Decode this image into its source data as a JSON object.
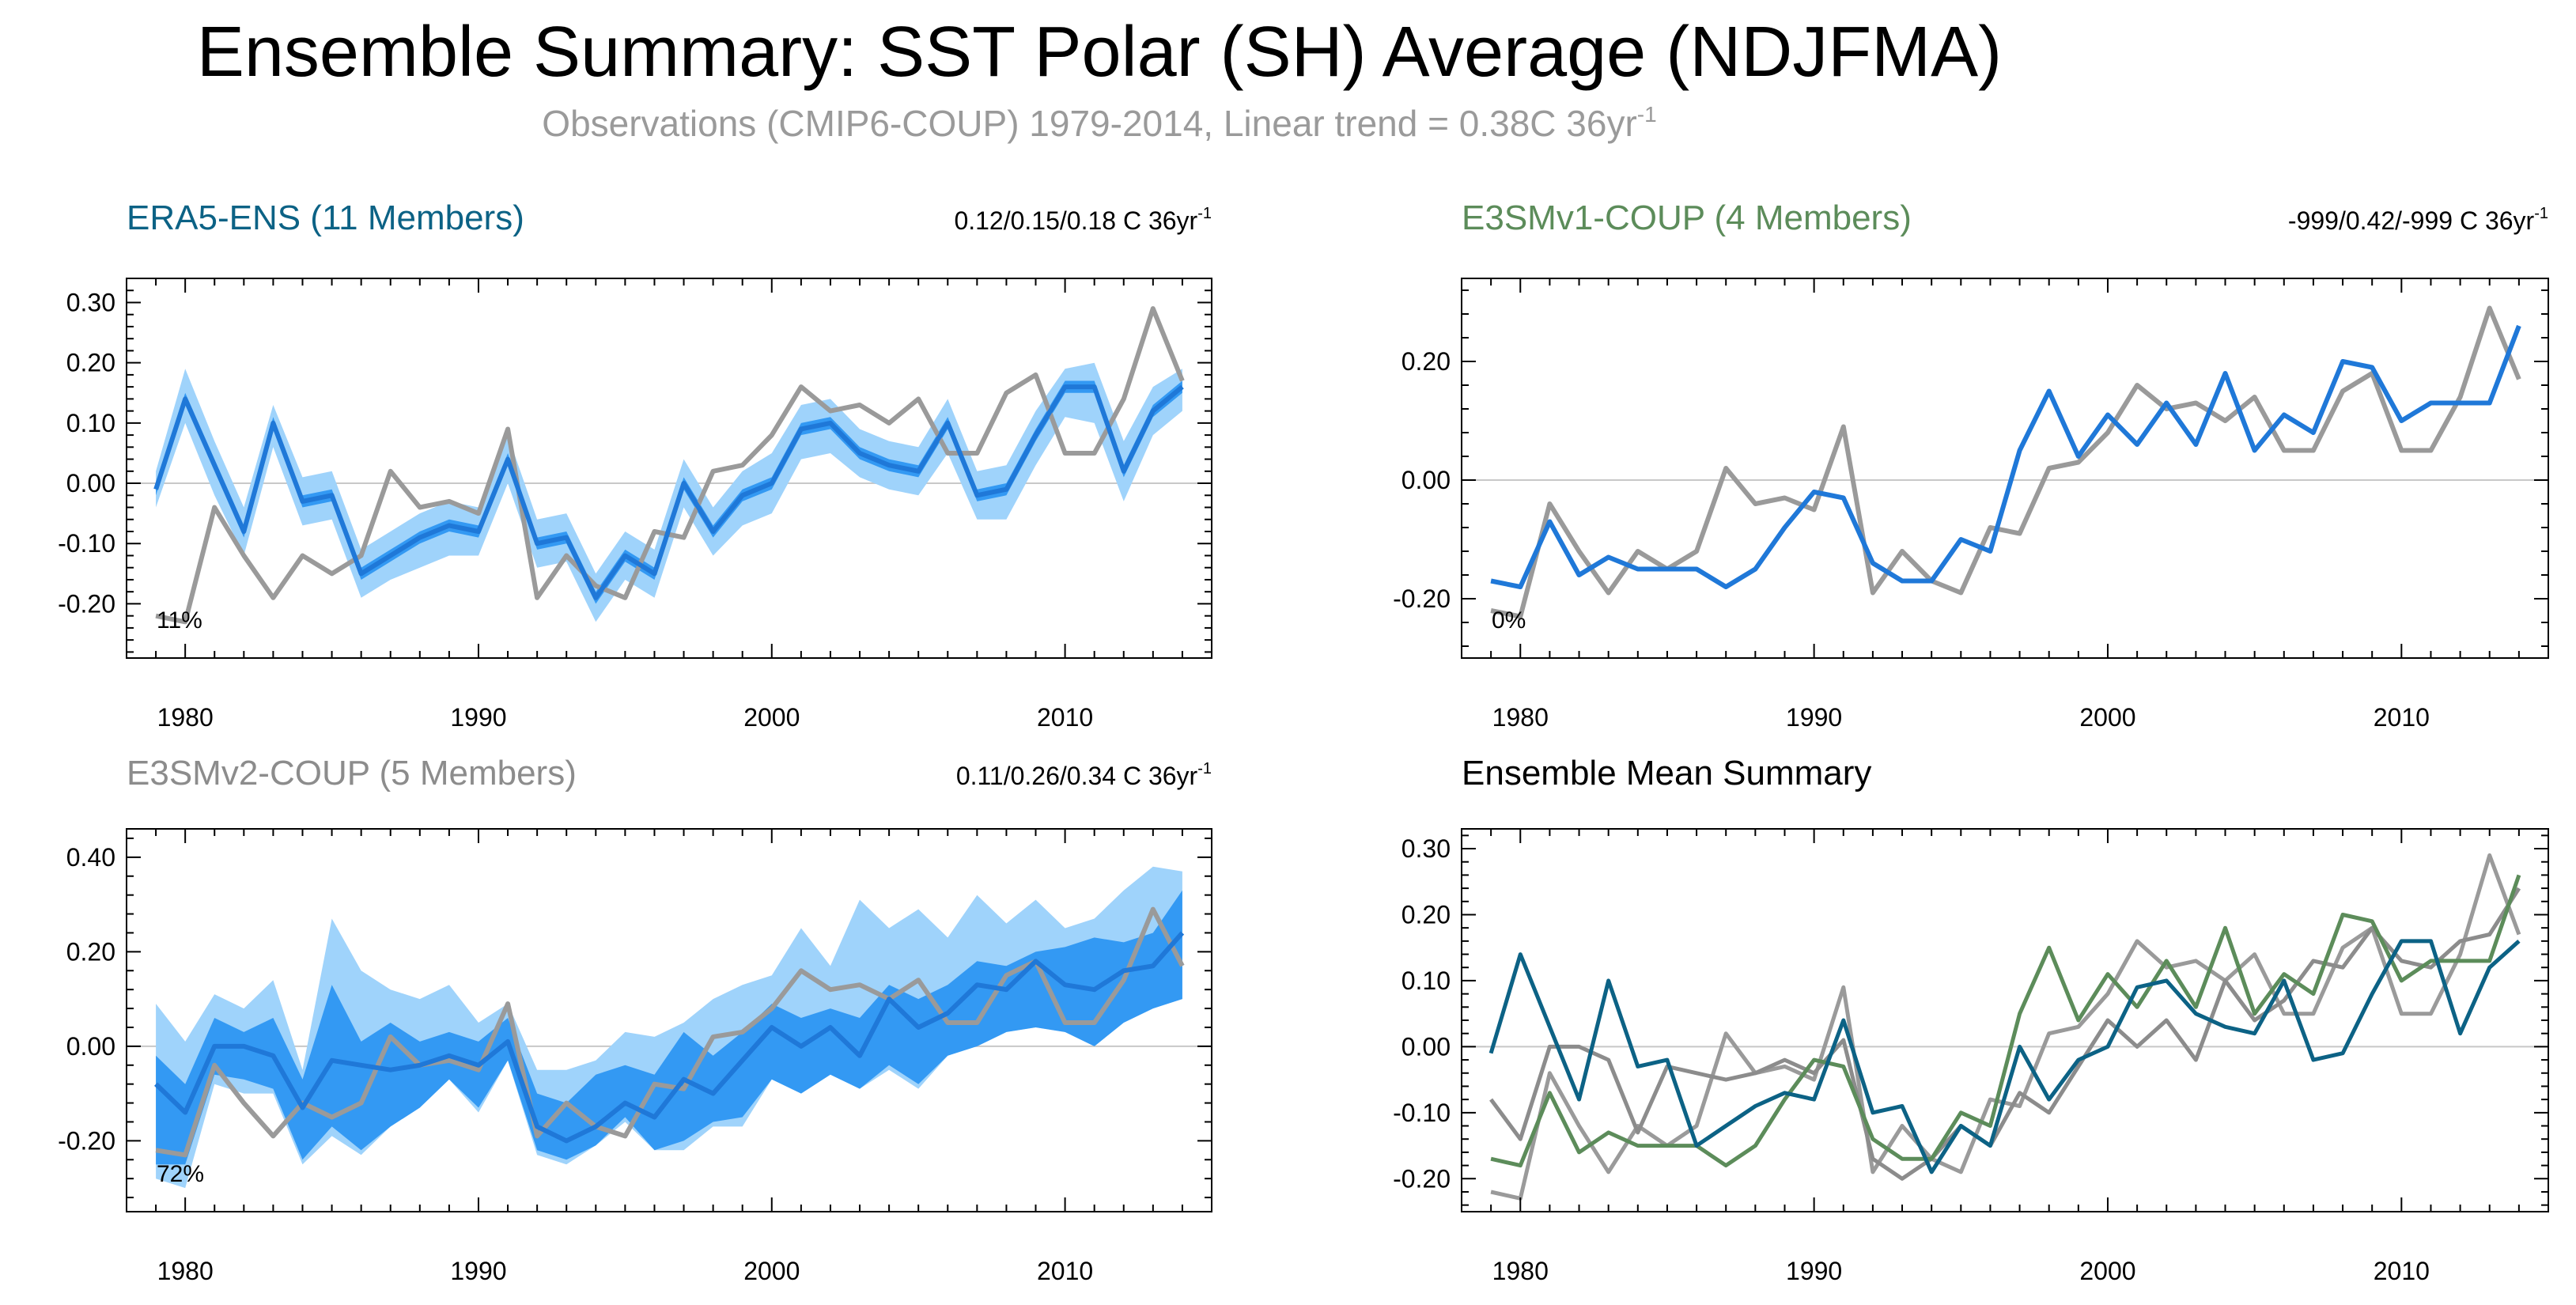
{
  "figure": {
    "title": "Ensemble Summary: SST Polar (SH) Average (NDJFMA)",
    "subtitle": "Observations (CMIP6-COUP) 1979-2014, Linear trend = 0.38C 36yr",
    "subtitle_sup": "-1"
  },
  "colors": {
    "obs": "#9a9a9a",
    "era5": "#0c6285",
    "e3smv1": "#5c8c5a",
    "e3smv2": "#8c8c8c",
    "band_outer": "#9fd3fb",
    "band_inner": "#3399f3",
    "mean_line": "#1f78d8",
    "zero_line": "#c8c8c8"
  },
  "chart_data": [
    {
      "id": "era5",
      "type": "line",
      "title": "ERA5-ENS (11 Members)",
      "trend_text": "0.12/0.15/0.18 C 36yr",
      "trend_sup": "-1",
      "percent_text": "11%",
      "xlabel": "",
      "ylabel": "",
      "xlim": [
        1978,
        2015
      ],
      "ylim": [
        -0.29,
        0.34
      ],
      "xticks": [
        1980,
        1990,
        2000,
        2010
      ],
      "yticks": [
        -0.2,
        -0.1,
        0.0,
        0.1,
        0.2,
        0.3
      ],
      "ytick_labels": [
        "-0.20",
        "-0.10",
        "0.00",
        "0.10",
        "0.20",
        "0.30"
      ],
      "x": [
        1979,
        1980,
        1981,
        1982,
        1983,
        1984,
        1985,
        1986,
        1987,
        1988,
        1989,
        1990,
        1991,
        1992,
        1993,
        1994,
        1995,
        1996,
        1997,
        1998,
        1999,
        2000,
        2001,
        2002,
        2003,
        2004,
        2005,
        2006,
        2007,
        2008,
        2009,
        2010,
        2011,
        2012,
        2013,
        2014
      ],
      "observations": [
        -0.22,
        -0.23,
        -0.04,
        -0.12,
        -0.19,
        -0.12,
        -0.15,
        -0.12,
        0.02,
        -0.04,
        -0.03,
        -0.05,
        0.09,
        -0.19,
        -0.12,
        -0.17,
        -0.19,
        -0.08,
        -0.09,
        0.02,
        0.03,
        0.08,
        0.16,
        0.12,
        0.13,
        0.1,
        0.14,
        0.05,
        0.05,
        0.15,
        0.18,
        0.05,
        0.05,
        0.14,
        0.29,
        0.17
      ],
      "ensemble_mean": [
        -0.01,
        0.14,
        0.03,
        -0.08,
        0.1,
        -0.03,
        -0.02,
        -0.15,
        -0.12,
        -0.09,
        -0.07,
        -0.08,
        0.04,
        -0.1,
        -0.09,
        -0.19,
        -0.12,
        -0.15,
        0.0,
        -0.08,
        -0.02,
        0.0,
        0.09,
        0.1,
        0.05,
        0.03,
        0.02,
        0.1,
        -0.02,
        -0.01,
        0.08,
        0.16,
        0.16,
        0.02,
        0.12,
        0.16
      ],
      "band_outer_min": [
        -0.04,
        0.1,
        -0.02,
        -0.12,
        0.06,
        -0.07,
        -0.06,
        -0.19,
        -0.16,
        -0.14,
        -0.12,
        -0.12,
        0.0,
        -0.14,
        -0.13,
        -0.23,
        -0.16,
        -0.19,
        -0.04,
        -0.12,
        -0.07,
        -0.05,
        0.04,
        0.05,
        0.01,
        -0.01,
        -0.02,
        0.05,
        -0.06,
        -0.06,
        0.03,
        0.11,
        0.1,
        -0.03,
        0.08,
        0.12
      ],
      "band_outer_max": [
        0.02,
        0.19,
        0.07,
        -0.04,
        0.13,
        0.01,
        0.02,
        -0.11,
        -0.08,
        -0.05,
        -0.03,
        -0.04,
        0.08,
        -0.06,
        -0.05,
        -0.15,
        -0.08,
        -0.11,
        0.04,
        -0.04,
        0.02,
        0.05,
        0.13,
        0.14,
        0.09,
        0.07,
        0.06,
        0.14,
        0.02,
        0.03,
        0.12,
        0.19,
        0.2,
        0.07,
        0.16,
        0.19
      ],
      "band_inner_min": [
        -0.02,
        0.13,
        0.02,
        -0.09,
        0.09,
        -0.04,
        -0.03,
        -0.16,
        -0.13,
        -0.1,
        -0.08,
        -0.09,
        0.03,
        -0.11,
        -0.1,
        -0.2,
        -0.13,
        -0.16,
        -0.01,
        -0.09,
        -0.03,
        -0.01,
        0.08,
        0.09,
        0.04,
        0.02,
        0.01,
        0.09,
        -0.03,
        -0.02,
        0.07,
        0.15,
        0.15,
        0.01,
        0.11,
        0.15
      ],
      "band_inner_max": [
        0.0,
        0.15,
        0.04,
        -0.07,
        0.11,
        -0.02,
        -0.01,
        -0.14,
        -0.11,
        -0.08,
        -0.06,
        -0.07,
        0.05,
        -0.09,
        -0.08,
        -0.18,
        -0.11,
        -0.14,
        0.01,
        -0.07,
        -0.01,
        0.01,
        0.1,
        0.11,
        0.06,
        0.04,
        0.03,
        0.11,
        -0.01,
        0.0,
        0.09,
        0.17,
        0.17,
        0.03,
        0.13,
        0.17
      ]
    },
    {
      "id": "e3smv1",
      "type": "line",
      "title": "E3SMv1-COUP (4 Members)",
      "trend_text": "-999/0.42/-999 C 36yr",
      "trend_sup": "-1",
      "percent_text": "0%",
      "xlabel": "",
      "ylabel": "",
      "xlim": [
        1978,
        2015
      ],
      "ylim": [
        -0.3,
        0.34
      ],
      "xticks": [
        1980,
        1990,
        2000,
        2010
      ],
      "yticks": [
        -0.2,
        0.0,
        0.2
      ],
      "ytick_labels": [
        "-0.20",
        "0.00",
        "0.20"
      ],
      "x": [
        1979,
        1980,
        1981,
        1982,
        1983,
        1984,
        1985,
        1986,
        1987,
        1988,
        1989,
        1990,
        1991,
        1992,
        1993,
        1994,
        1995,
        1996,
        1997,
        1998,
        1999,
        2000,
        2001,
        2002,
        2003,
        2004,
        2005,
        2006,
        2007,
        2008,
        2009,
        2010,
        2011,
        2012,
        2013,
        2014
      ],
      "observations": [
        -0.22,
        -0.23,
        -0.04,
        -0.12,
        -0.19,
        -0.12,
        -0.15,
        -0.12,
        0.02,
        -0.04,
        -0.03,
        -0.05,
        0.09,
        -0.19,
        -0.12,
        -0.17,
        -0.19,
        -0.08,
        -0.09,
        0.02,
        0.03,
        0.08,
        0.16,
        0.12,
        0.13,
        0.1,
        0.14,
        0.05,
        0.05,
        0.15,
        0.18,
        0.05,
        0.05,
        0.14,
        0.29,
        0.17
      ],
      "ensemble_mean": [
        -0.17,
        -0.18,
        -0.07,
        -0.16,
        -0.13,
        -0.15,
        -0.15,
        -0.15,
        -0.18,
        -0.15,
        -0.08,
        -0.02,
        -0.03,
        -0.14,
        -0.17,
        -0.17,
        -0.1,
        -0.12,
        0.05,
        0.15,
        0.04,
        0.11,
        0.06,
        0.13,
        0.06,
        0.18,
        0.05,
        0.11,
        0.08,
        0.2,
        0.19,
        0.1,
        0.13,
        0.13,
        0.13,
        0.26
      ]
    },
    {
      "id": "e3smv2",
      "type": "line",
      "title": "E3SMv2-COUP (5 Members)",
      "trend_text": "0.11/0.26/0.34 C 36yr",
      "trend_sup": "-1",
      "percent_text": "72%",
      "xlabel": "",
      "ylabel": "",
      "xlim": [
        1978,
        2015
      ],
      "ylim": [
        -0.35,
        0.46
      ],
      "xticks": [
        1980,
        1990,
        2000,
        2010
      ],
      "yticks": [
        -0.2,
        0.0,
        0.2,
        0.4
      ],
      "ytick_labels": [
        "-0.20",
        "0.00",
        "0.20",
        "0.40"
      ],
      "x": [
        1979,
        1980,
        1981,
        1982,
        1983,
        1984,
        1985,
        1986,
        1987,
        1988,
        1989,
        1990,
        1991,
        1992,
        1993,
        1994,
        1995,
        1996,
        1997,
        1998,
        1999,
        2000,
        2001,
        2002,
        2003,
        2004,
        2005,
        2006,
        2007,
        2008,
        2009,
        2010,
        2011,
        2012,
        2013,
        2014
      ],
      "observations": [
        -0.22,
        -0.23,
        -0.04,
        -0.12,
        -0.19,
        -0.12,
        -0.15,
        -0.12,
        0.02,
        -0.04,
        -0.03,
        -0.05,
        0.09,
        -0.19,
        -0.12,
        -0.17,
        -0.19,
        -0.08,
        -0.09,
        0.02,
        0.03,
        0.08,
        0.16,
        0.12,
        0.13,
        0.1,
        0.14,
        0.05,
        0.05,
        0.15,
        0.18,
        0.05,
        0.05,
        0.14,
        0.29,
        0.17
      ],
      "ensemble_mean": [
        -0.08,
        -0.14,
        0.0,
        0.0,
        -0.02,
        -0.13,
        -0.03,
        -0.04,
        -0.05,
        -0.04,
        -0.02,
        -0.04,
        0.01,
        -0.17,
        -0.2,
        -0.17,
        -0.12,
        -0.15,
        -0.07,
        -0.1,
        -0.03,
        0.04,
        0.0,
        0.04,
        -0.02,
        0.1,
        0.04,
        0.07,
        0.13,
        0.12,
        0.18,
        0.13,
        0.12,
        0.16,
        0.17,
        0.24
      ],
      "band_outer_min": [
        -0.28,
        -0.3,
        -0.08,
        -0.1,
        -0.1,
        -0.25,
        -0.19,
        -0.23,
        -0.17,
        -0.13,
        -0.07,
        -0.14,
        -0.03,
        -0.23,
        -0.25,
        -0.21,
        -0.16,
        -0.22,
        -0.22,
        -0.17,
        -0.17,
        -0.07,
        -0.1,
        -0.06,
        -0.09,
        -0.05,
        -0.09,
        -0.02,
        0.0,
        0.03,
        0.04,
        0.03,
        0.0,
        0.05,
        0.08,
        0.1
      ],
      "band_outer_max": [
        0.09,
        0.01,
        0.11,
        0.08,
        0.14,
        -0.05,
        0.27,
        0.16,
        0.12,
        0.1,
        0.13,
        0.05,
        0.09,
        -0.05,
        -0.05,
        -0.03,
        0.03,
        0.02,
        0.05,
        0.1,
        0.13,
        0.15,
        0.25,
        0.17,
        0.31,
        0.25,
        0.29,
        0.23,
        0.32,
        0.26,
        0.31,
        0.25,
        0.27,
        0.33,
        0.38,
        0.37
      ],
      "band_inner_min": [
        -0.25,
        -0.25,
        -0.06,
        -0.07,
        -0.09,
        -0.24,
        -0.17,
        -0.22,
        -0.17,
        -0.13,
        -0.07,
        -0.13,
        -0.03,
        -0.22,
        -0.24,
        -0.21,
        -0.15,
        -0.22,
        -0.2,
        -0.16,
        -0.15,
        -0.07,
        -0.1,
        -0.06,
        -0.09,
        -0.04,
        -0.08,
        -0.02,
        0.0,
        0.03,
        0.04,
        0.03,
        0.0,
        0.05,
        0.08,
        0.1
      ],
      "band_inner_max": [
        -0.02,
        -0.08,
        0.06,
        0.03,
        0.06,
        -0.07,
        0.13,
        0.01,
        0.05,
        0.01,
        0.03,
        0.01,
        0.06,
        -0.1,
        -0.12,
        -0.06,
        -0.04,
        -0.06,
        0.03,
        -0.02,
        0.03,
        0.09,
        0.06,
        0.08,
        0.06,
        0.13,
        0.1,
        0.13,
        0.18,
        0.17,
        0.2,
        0.21,
        0.23,
        0.22,
        0.24,
        0.33
      ]
    },
    {
      "id": "summary",
      "type": "line",
      "title": "Ensemble Mean Summary",
      "xlabel": "",
      "ylabel": "",
      "xlim": [
        1978,
        2015
      ],
      "ylim": [
        -0.25,
        0.33
      ],
      "xticks": [
        1980,
        1990,
        2000,
        2010
      ],
      "yticks": [
        -0.2,
        -0.1,
        0.0,
        0.1,
        0.2,
        0.3
      ],
      "ytick_labels": [
        "-0.20",
        "-0.10",
        "0.00",
        "0.10",
        "0.20",
        "0.30"
      ],
      "x": [
        1979,
        1980,
        1981,
        1982,
        1983,
        1984,
        1985,
        1986,
        1987,
        1988,
        1989,
        1990,
        1991,
        1992,
        1993,
        1994,
        1995,
        1996,
        1997,
        1998,
        1999,
        2000,
        2001,
        2002,
        2003,
        2004,
        2005,
        2006,
        2007,
        2008,
        2009,
        2010,
        2011,
        2012,
        2013,
        2014
      ],
      "series": [
        {
          "name": "Observations",
          "color_key": "obs",
          "values": [
            -0.22,
            -0.23,
            -0.04,
            -0.12,
            -0.19,
            -0.12,
            -0.15,
            -0.12,
            0.02,
            -0.04,
            -0.03,
            -0.05,
            0.09,
            -0.19,
            -0.12,
            -0.17,
            -0.19,
            -0.08,
            -0.09,
            0.02,
            0.03,
            0.08,
            0.16,
            0.12,
            0.13,
            0.1,
            0.14,
            0.05,
            0.05,
            0.15,
            0.18,
            0.05,
            0.05,
            0.14,
            0.29,
            0.17
          ]
        },
        {
          "name": "E3SMv2-COUP",
          "color_key": "e3smv2",
          "values": [
            -0.08,
            -0.14,
            0.0,
            0.0,
            -0.02,
            -0.13,
            -0.03,
            -0.04,
            -0.05,
            -0.04,
            -0.02,
            -0.04,
            0.01,
            -0.17,
            -0.2,
            -0.17,
            -0.12,
            -0.15,
            -0.07,
            -0.1,
            -0.03,
            0.04,
            0.0,
            0.04,
            -0.02,
            0.1,
            0.04,
            0.07,
            0.13,
            0.12,
            0.18,
            0.13,
            0.12,
            0.16,
            0.17,
            0.24
          ]
        },
        {
          "name": "E3SMv1-COUP",
          "color_key": "e3smv1",
          "values": [
            -0.17,
            -0.18,
            -0.07,
            -0.16,
            -0.13,
            -0.15,
            -0.15,
            -0.15,
            -0.18,
            -0.15,
            -0.08,
            -0.02,
            -0.03,
            -0.14,
            -0.17,
            -0.17,
            -0.1,
            -0.12,
            0.05,
            0.15,
            0.04,
            0.11,
            0.06,
            0.13,
            0.06,
            0.18,
            0.05,
            0.11,
            0.08,
            0.2,
            0.19,
            0.1,
            0.13,
            0.13,
            0.13,
            0.26
          ]
        },
        {
          "name": "ERA5-ENS",
          "color_key": "era5",
          "values": [
            -0.01,
            0.14,
            0.03,
            -0.08,
            0.1,
            -0.03,
            -0.02,
            -0.15,
            -0.12,
            -0.09,
            -0.07,
            -0.08,
            0.04,
            -0.1,
            -0.09,
            -0.19,
            -0.12,
            -0.15,
            0.0,
            -0.08,
            -0.02,
            0.0,
            0.09,
            0.1,
            0.05,
            0.03,
            0.02,
            0.1,
            -0.02,
            -0.01,
            0.08,
            0.16,
            0.16,
            0.02,
            0.12,
            0.16
          ]
        }
      ]
    }
  ]
}
